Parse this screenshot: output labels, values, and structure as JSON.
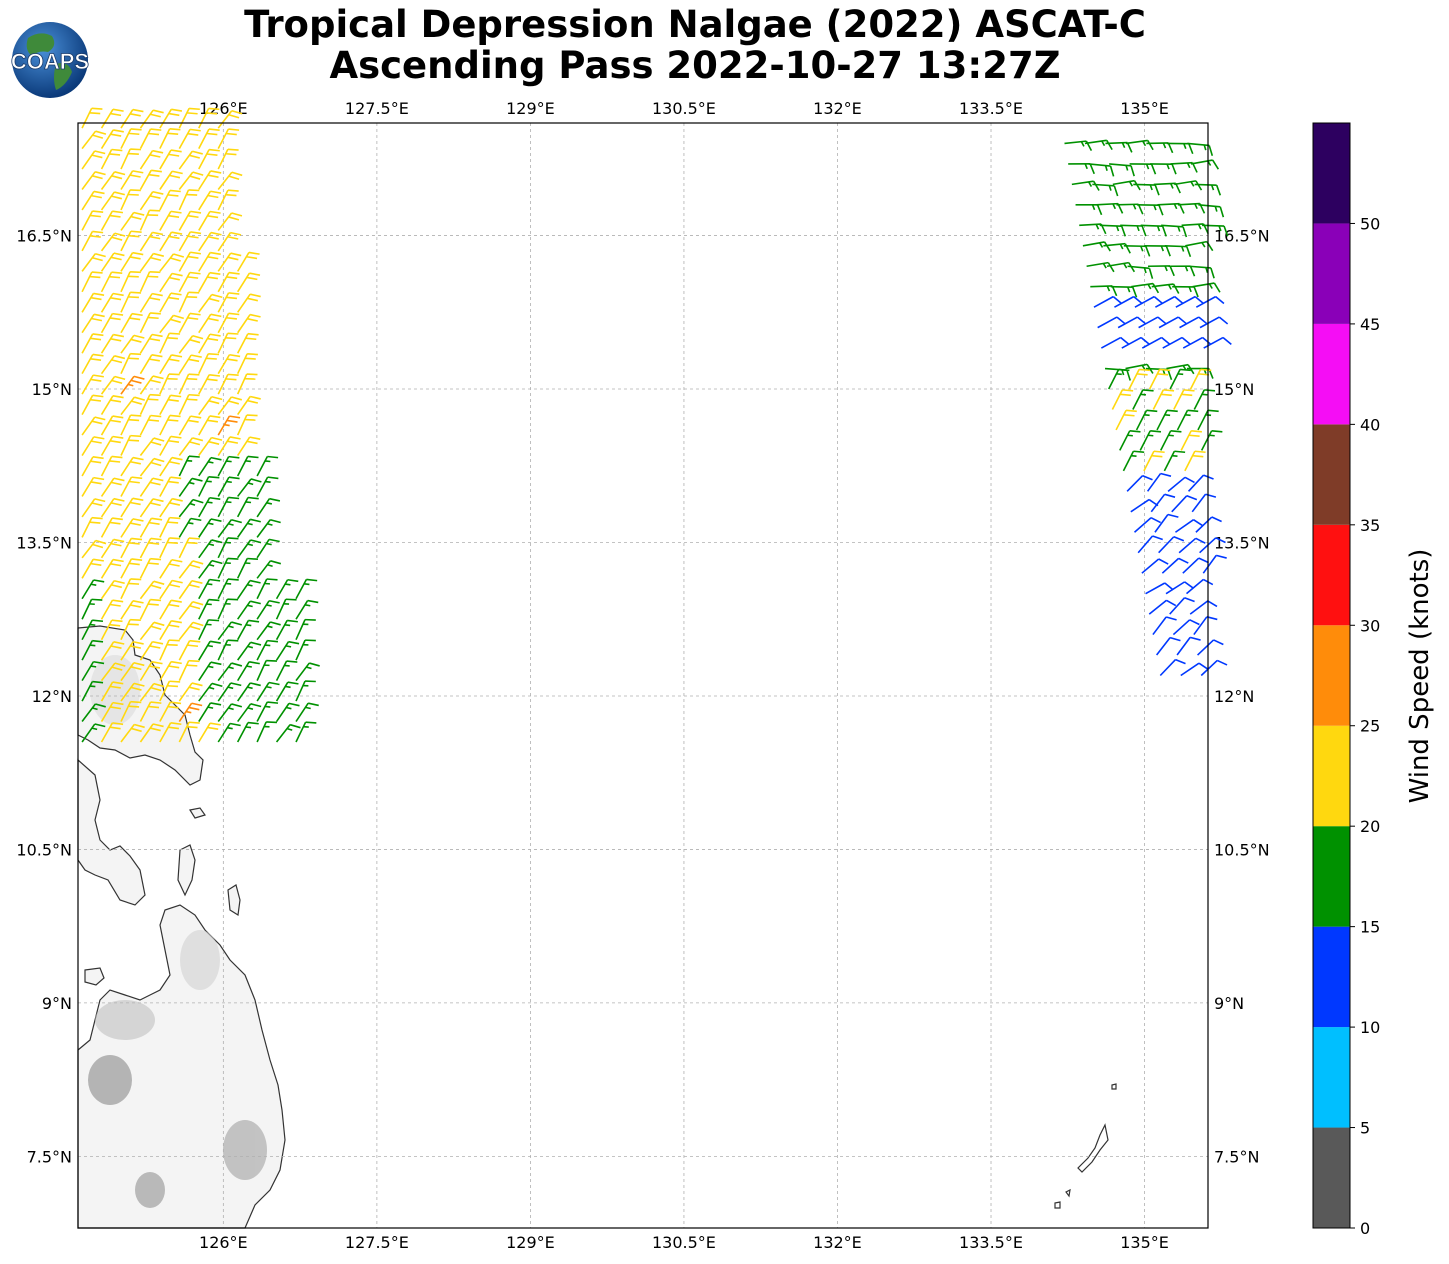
{
  "header": {
    "title_line1": "Tropical Depression Nalgae (2022) ASCAT-C",
    "title_line2": "Ascending Pass 2022-10-27 13:27Z",
    "logo_text": "COAPS"
  },
  "map": {
    "lon_range": [
      124.58,
      135.62
    ],
    "lat_range": [
      6.8,
      17.6
    ],
    "lon_ticks": [
      {
        "value": 126.0,
        "label": "126°E"
      },
      {
        "value": 127.5,
        "label": "127.5°E"
      },
      {
        "value": 129.0,
        "label": "129°E"
      },
      {
        "value": 130.5,
        "label": "130.5°E"
      },
      {
        "value": 132.0,
        "label": "132°E"
      },
      {
        "value": 133.5,
        "label": "133.5°E"
      },
      {
        "value": 135.0,
        "label": "135°E"
      }
    ],
    "lat_ticks": [
      {
        "value": 16.5,
        "label": "16.5°N"
      },
      {
        "value": 15.0,
        "label": "15°N"
      },
      {
        "value": 13.5,
        "label": "13.5°N"
      },
      {
        "value": 12.0,
        "label": "12°N"
      },
      {
        "value": 10.5,
        "label": "10.5°N"
      },
      {
        "value": 9.0,
        "label": "9°N"
      },
      {
        "value": 7.5,
        "label": "7.5°N"
      }
    ],
    "gridlines": "dashed",
    "land_fill": "white-gray-terrain",
    "coastline_color": "#333333"
  },
  "colorbar": {
    "label": "Wind Speed (knots)",
    "ticks": [
      {
        "value": 0,
        "label": "0"
      },
      {
        "value": 5,
        "label": "5"
      },
      {
        "value": 10,
        "label": "10"
      },
      {
        "value": 15,
        "label": "15"
      },
      {
        "value": 20,
        "label": "20"
      },
      {
        "value": 25,
        "label": "25"
      },
      {
        "value": 30,
        "label": "30"
      },
      {
        "value": 35,
        "label": "35"
      },
      {
        "value": 40,
        "label": "40"
      },
      {
        "value": 45,
        "label": "45"
      },
      {
        "value": 50,
        "label": "50"
      }
    ],
    "range": [
      0,
      55
    ],
    "bins": [
      {
        "from": 0,
        "to": 5,
        "color": "#595959"
      },
      {
        "from": 5,
        "to": 10,
        "color": "#00bfff"
      },
      {
        "from": 10,
        "to": 15,
        "color": "#0038ff"
      },
      {
        "from": 15,
        "to": 20,
        "color": "#009100"
      },
      {
        "from": 20,
        "to": 25,
        "color": "#ffd80f"
      },
      {
        "from": 25,
        "to": 30,
        "color": "#ff8c0a"
      },
      {
        "from": 30,
        "to": 35,
        "color": "#ff1010"
      },
      {
        "from": 35,
        "to": 40,
        "color": "#7f3c28"
      },
      {
        "from": 40,
        "to": 45,
        "color": "#f50df5"
      },
      {
        "from": 45,
        "to": 50,
        "color": "#8a00b8"
      },
      {
        "from": 50,
        "to": 55,
        "color": "#2d0060"
      }
    ]
  },
  "wind_swaths": {
    "west": {
      "lon_min": 124.6,
      "lon_max": 126.8,
      "lat_min": 11.5,
      "lat_max": 17.6,
      "dominant_speed": "20-25",
      "secondary_speed": "15-20"
    },
    "east": {
      "lon_min": 134.2,
      "lon_max": 135.6,
      "lat_min": 12.2,
      "lat_max": 17.5,
      "dominant_speed": "15-20",
      "secondary_speed": "10-15"
    }
  }
}
